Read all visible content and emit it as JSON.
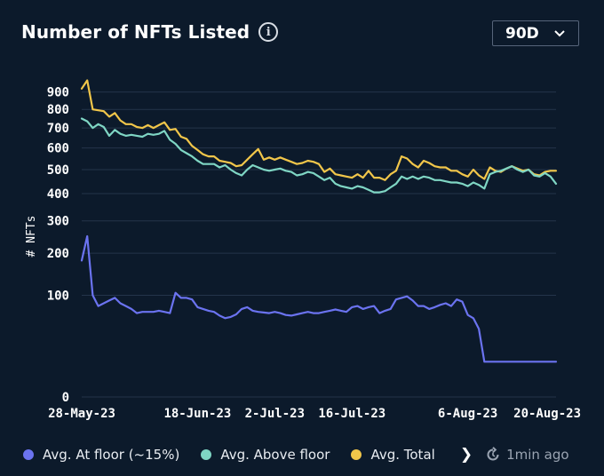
{
  "header": {
    "title": "Number of NFTs Listed",
    "info_icon": "info-icon",
    "range_label": "90D"
  },
  "legend": {
    "items": [
      {
        "label": "Avg. At floor (~15%)",
        "color": "#6b73f0"
      },
      {
        "label": "Avg. Above floor",
        "color": "#7fd6c4"
      },
      {
        "label": "Avg. Total",
        "color": "#f1c64a"
      }
    ],
    "more_icon": "chevron-right-icon",
    "refresh_icon": "refresh-icon",
    "updated": "1min ago"
  },
  "chart_data": {
    "type": "line",
    "ylabel": "# NFTs",
    "yscale": "sqrt",
    "ylim": [
      0,
      1000
    ],
    "yticks": [
      0,
      100,
      200,
      300,
      400,
      500,
      600,
      700,
      800,
      900
    ],
    "grid": true,
    "xticks": [
      {
        "label": "28-May-23",
        "day": 0
      },
      {
        "label": "18-Jun-23",
        "day": 21
      },
      {
        "label": "2-Jul-23",
        "day": 35
      },
      {
        "label": "16-Jul-23",
        "day": 49
      },
      {
        "label": "6-Aug-23",
        "day": 70
      },
      {
        "label": "20-Aug-23",
        "day": 84
      }
    ],
    "x": [
      0,
      1,
      2,
      3,
      4,
      5,
      6,
      7,
      8,
      9,
      10,
      11,
      12,
      13,
      14,
      15,
      16,
      17,
      18,
      19,
      20,
      21,
      22,
      23,
      24,
      25,
      26,
      27,
      28,
      29,
      30,
      31,
      32,
      33,
      34,
      35,
      36,
      37,
      38,
      39,
      40,
      41,
      42,
      43,
      44,
      45,
      46,
      47,
      48,
      49,
      50,
      51,
      52,
      53,
      54,
      55,
      56,
      57,
      58,
      59,
      60,
      61,
      62,
      63,
      64,
      65,
      66,
      67,
      68,
      69,
      70,
      71,
      72,
      73,
      74,
      75,
      76,
      77,
      78,
      79,
      80,
      81,
      82,
      83,
      84,
      85,
      86
    ],
    "series": [
      {
        "name": "Avg. Total",
        "color": "#f1c64a",
        "values": [
          920,
          970,
          800,
          795,
          790,
          760,
          780,
          740,
          720,
          720,
          705,
          700,
          715,
          700,
          715,
          730,
          690,
          695,
          655,
          645,
          610,
          590,
          570,
          560,
          560,
          540,
          535,
          530,
          515,
          520,
          545,
          570,
          595,
          545,
          555,
          545,
          555,
          545,
          535,
          525,
          530,
          540,
          535,
          525,
          490,
          505,
          480,
          475,
          470,
          465,
          480,
          465,
          495,
          465,
          465,
          455,
          480,
          495,
          560,
          550,
          525,
          510,
          540,
          530,
          515,
          510,
          510,
          495,
          495,
          480,
          470,
          500,
          475,
          460,
          510,
          495,
          490,
          505,
          515,
          505,
          495,
          500,
          480,
          475,
          490,
          495,
          495
        ]
      },
      {
        "name": "Avg. Above floor",
        "color": "#7fd6c4",
        "values": [
          750,
          735,
          700,
          720,
          705,
          660,
          690,
          670,
          660,
          665,
          660,
          655,
          670,
          665,
          670,
          685,
          640,
          620,
          590,
          575,
          560,
          540,
          525,
          525,
          525,
          510,
          520,
          500,
          485,
          475,
          500,
          520,
          510,
          500,
          495,
          500,
          505,
          495,
          490,
          475,
          480,
          490,
          485,
          470,
          455,
          465,
          440,
          430,
          425,
          420,
          430,
          425,
          415,
          405,
          405,
          410,
          425,
          440,
          470,
          460,
          470,
          460,
          470,
          465,
          455,
          455,
          450,
          445,
          445,
          440,
          430,
          445,
          435,
          420,
          480,
          490,
          495,
          505,
          515,
          500,
          490,
          500,
          475,
          470,
          485,
          470,
          440
        ]
      },
      {
        "name": "Avg. At floor (~15%)",
        "color": "#6b73f0",
        "values": [
          180,
          250,
          100,
          80,
          85,
          90,
          95,
          85,
          80,
          75,
          68,
          70,
          70,
          70,
          72,
          70,
          68,
          105,
          95,
          95,
          92,
          78,
          75,
          72,
          70,
          64,
          60,
          62,
          66,
          75,
          78,
          72,
          70,
          69,
          68,
          70,
          68,
          65,
          64,
          66,
          68,
          70,
          68,
          68,
          70,
          72,
          74,
          72,
          70,
          78,
          80,
          75,
          78,
          80,
          68,
          72,
          75,
          92,
          95,
          98,
          90,
          80,
          80,
          75,
          78,
          82,
          85,
          80,
          92,
          88,
          65,
          60,
          45,
          12,
          12,
          12,
          12,
          12,
          12,
          12,
          12,
          12,
          12,
          12,
          12,
          12,
          12
        ]
      }
    ]
  }
}
